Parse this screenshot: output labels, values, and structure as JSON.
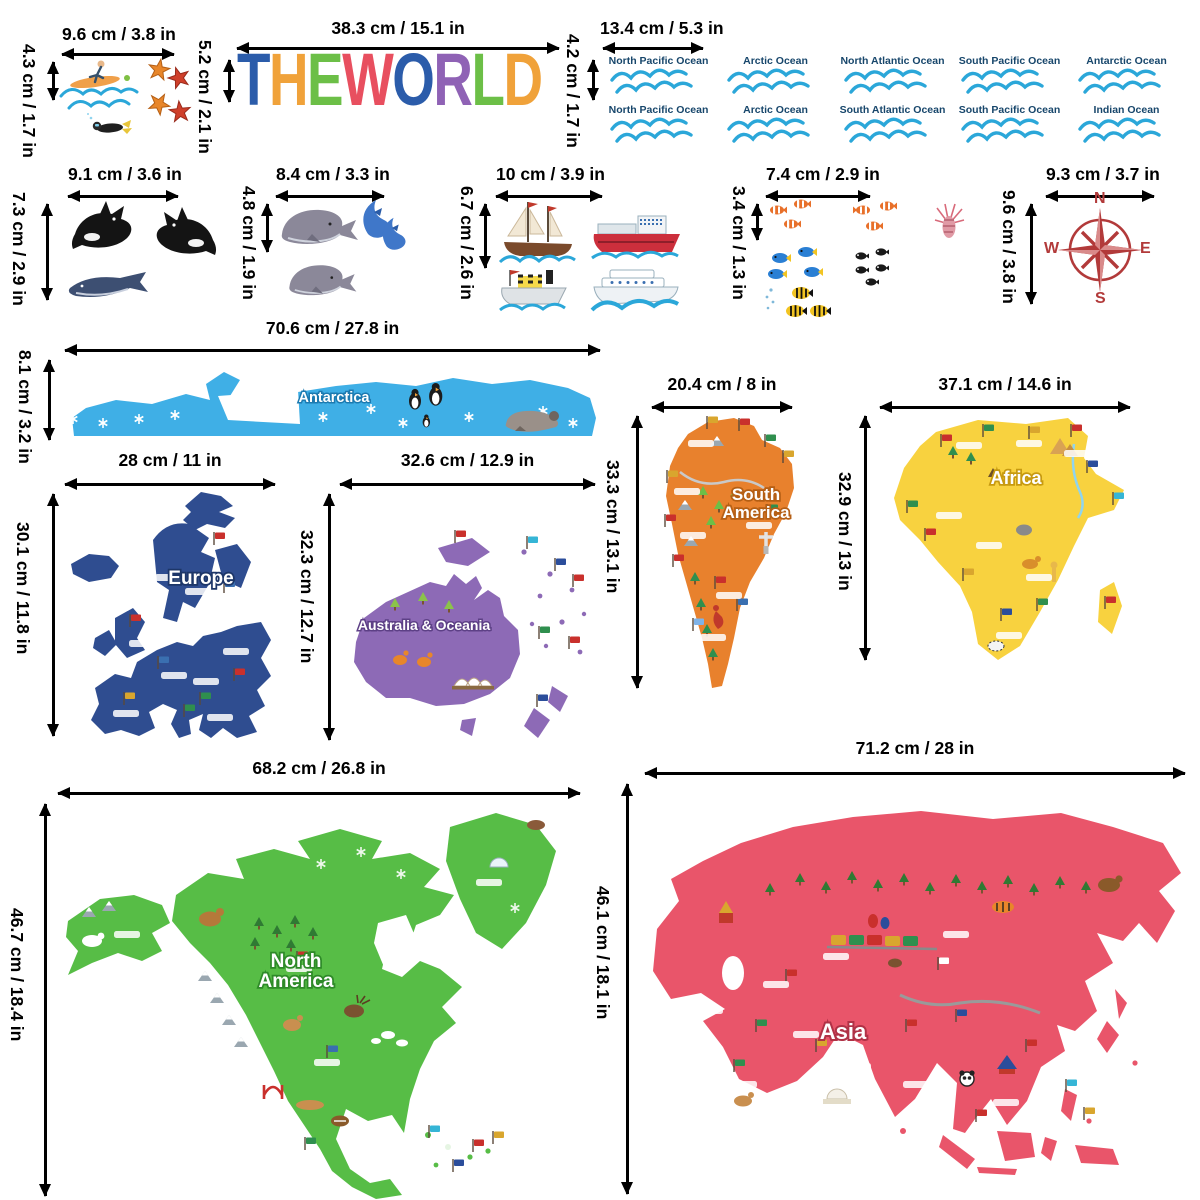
{
  "title": {
    "text": "THE WORLD",
    "letters": [
      {
        "ch": "T",
        "color": "#2b5caa"
      },
      {
        "ch": "H",
        "color": "#f0a23a"
      },
      {
        "ch": "E",
        "color": "#6cbf47"
      },
      {
        "ch": "W",
        "color": "#e84f5f"
      },
      {
        "ch": "O",
        "color": "#2b5caa"
      },
      {
        "ch": "R",
        "color": "#8f62b5"
      },
      {
        "ch": "L",
        "color": "#6cbf47"
      },
      {
        "ch": "D",
        "color": "#f0a23a"
      }
    ],
    "width_label": "38.3 cm / 15.1 in",
    "height_label": "5.2 cm / 2.1 in"
  },
  "sticker_groups": {
    "surf": {
      "width_label": "9.6 cm / 3.8 in",
      "height_label": "4.3 cm / 1.7 in"
    },
    "orcas": {
      "width_label": "9.1 cm / 3.6 in",
      "height_label": "7.3 cm / 2.9 in"
    },
    "whales_dolphins": {
      "width_label": "8.4 cm / 3.3 in",
      "height_label": "4.8 cm / 1.9 in"
    },
    "ships": {
      "width_label": "10 cm / 3.9 in",
      "height_label": "6.7 cm / 2.6 in"
    },
    "tropical_fish": {
      "width_label": "7.4 cm / 2.9 in",
      "height_label": "3.4 cm / 1.3 in"
    },
    "compass": {
      "width_label": "9.3 cm / 3.7 in",
      "height_label": "9.6 cm / 3.8 in",
      "n": "N",
      "e": "E",
      "s": "S",
      "w": "W",
      "color": "#b23a3a"
    }
  },
  "oceans": {
    "width_label": "13.4 cm / 5.3 in",
    "height_label": "4.2 cm / 1.7 in",
    "rows": [
      [
        "North Pacific Ocean",
        "Arctic Ocean",
        "North Atlantic Ocean",
        "South Pacific Ocean",
        "Antarctic Ocean"
      ],
      [
        "North Pacific Ocean",
        "Arctic Ocean",
        "South Atlantic Ocean",
        "South Pacific Ocean",
        "Indian Ocean"
      ]
    ],
    "text_color": "#17466b",
    "wave_color": "#2ba7d9"
  },
  "continents": {
    "antarctica": {
      "name": "Antarctica",
      "width_label": "70.6 cm / 27.8 in",
      "height_label": "8.1 cm / 3.2 in",
      "color": "#3fafe6"
    },
    "europe": {
      "name": "Europe",
      "width_label": "28 cm / 11 in",
      "height_label": "30.1 cm / 11.8 in",
      "color": "#2f4d90"
    },
    "australia_oceania": {
      "name": "Australia & Oceania",
      "width_label": "32.6 cm / 12.9 in",
      "height_label": "32.3 cm / 12.7 in",
      "color": "#8d6ab6"
    },
    "south_america": {
      "name": "South America",
      "name_lines": [
        "South",
        "America"
      ],
      "width_label": "20.4 cm / 8 in",
      "height_label": "33.3 cm / 13.1 in",
      "color": "#e8812d"
    },
    "africa": {
      "name": "Africa",
      "width_label": "37.1 cm / 14.6 in",
      "height_label": "32.9 cm / 13 in",
      "color": "#f8d23f"
    },
    "north_america": {
      "name": "North America",
      "name_lines": [
        "North",
        "America"
      ],
      "width_label": "68.2 cm / 26.8 in",
      "height_label": "46.7 cm / 18.4 in",
      "color": "#57bd46"
    },
    "asia": {
      "name": "Asia",
      "width_label": "71.2 cm / 28 in",
      "height_label": "46.1 cm / 18.1 in",
      "color": "#e9556a"
    }
  }
}
